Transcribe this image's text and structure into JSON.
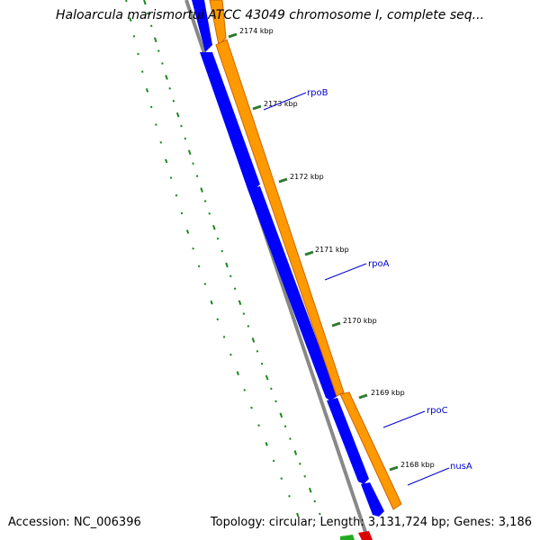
{
  "title": "Haloarcula marismortui ATCC 43049 chromosome I, complete seq...",
  "footer": {
    "accession": "Accession: NC_006396",
    "summary": "Topology: circular; Length: 3,131,724 bp; Genes: 3,186"
  },
  "colors": {
    "forward_genes": "#ff9900",
    "forward_gene_edge": "#cc6600",
    "reverse_genes": "#0000ff",
    "backbone": "#888888",
    "gc_skew_dots": "#1a8a1a",
    "tick_marks": "#2d7a2d",
    "gene_labels": "#0000cc",
    "tick_label_text": "#000000"
  },
  "scale_ticks": [
    "2174 kbp",
    "2173 kbp",
    "2172 kbp",
    "2171 kbp",
    "2170 kbp",
    "2169 kbp",
    "2168 kbp"
  ],
  "gene_labels": [
    "rpoB",
    "rpoA",
    "rpoC",
    "nusA"
  ]
}
